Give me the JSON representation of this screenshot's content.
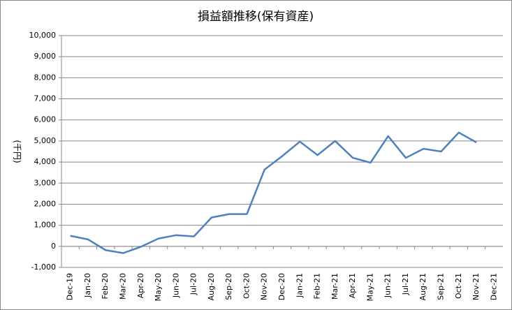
{
  "chart_data": {
    "type": "line",
    "title": "損益額推移(保有資産)",
    "y_label": "(千円)",
    "categories": [
      "Dec-19",
      "Jan-20",
      "Feb-20",
      "Mar-20",
      "Apr-20",
      "May-20",
      "Jun-20",
      "Jul-20",
      "Aug-20",
      "Sep-20",
      "Oct-20",
      "Nov-20",
      "Dec-20",
      "Jan-21",
      "Feb-21",
      "Mar-21",
      "Apr-21",
      "May-21",
      "Jun-21",
      "Jul-21",
      "Aug-21",
      "Sep-21",
      "Oct-21",
      "Nov-21",
      "Dec-21"
    ],
    "values": [
      500,
      330,
      -180,
      -320,
      -20,
      370,
      530,
      470,
      1370,
      1530,
      1530,
      3640,
      4280,
      4970,
      4330,
      5000,
      4200,
      3970,
      5230,
      4200,
      4630,
      4500,
      5400,
      4930,
      null
    ],
    "color": "#4f81bd",
    "ylim": [
      -1000,
      10000
    ],
    "yticks": [
      {
        "value": -1000,
        "label": "-1,000"
      },
      0,
      {
        "value": 1000,
        "label": "1,000"
      },
      {
        "value": 2000,
        "label": "2,000"
      },
      {
        "value": 3000,
        "label": "3,000"
      },
      {
        "value": 4000,
        "label": "4,000"
      },
      {
        "value": 5000,
        "label": "5,000"
      },
      {
        "value": 6000,
        "label": "6,000"
      },
      {
        "value": 7000,
        "label": "7,000"
      },
      {
        "value": 8000,
        "label": "8,000"
      },
      {
        "value": 9000,
        "label": "9,000"
      },
      {
        "value": 10000,
        "label": "10,000"
      }
    ],
    "grid": true
  }
}
